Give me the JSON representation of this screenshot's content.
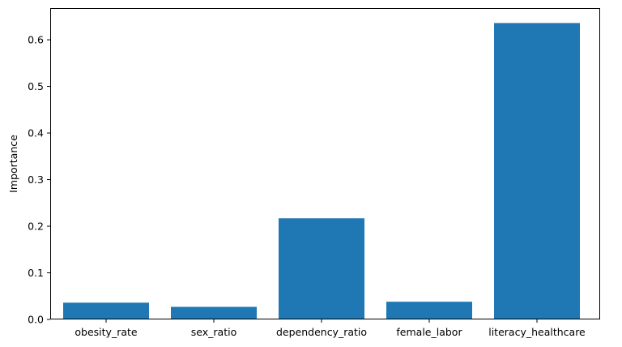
{
  "chart_data": {
    "type": "bar",
    "title": "",
    "xlabel": "",
    "ylabel": "Importance",
    "categories": [
      "obesity_rate",
      "sex_ratio",
      "dependency_ratio",
      "female_labor",
      "literacy_healthcare"
    ],
    "values": [
      0.036,
      0.027,
      0.217,
      0.038,
      0.636
    ],
    "ylim": [
      0,
      0.668
    ],
    "yticks": [
      0.0,
      0.1,
      0.2,
      0.3,
      0.4,
      0.5,
      0.6
    ],
    "ytick_labels": [
      "0.0",
      "0.1",
      "0.2",
      "0.3",
      "0.4",
      "0.5",
      "0.6"
    ],
    "grid": false,
    "legend": false,
    "colors": {
      "bar": "#1f77b4",
      "axis": "#000000"
    }
  }
}
